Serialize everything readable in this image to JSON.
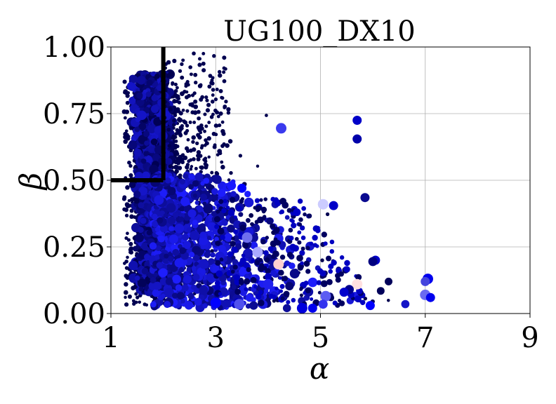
{
  "chart_data": {
    "type": "scatter",
    "title": "UG100_DX10",
    "xlabel": "α",
    "ylabel": "β",
    "xlim": [
      1,
      9
    ],
    "ylim": [
      0,
      1
    ],
    "xticks": [
      1,
      3,
      5,
      7,
      9
    ],
    "yticks": [
      0.0,
      0.25,
      0.5,
      0.75,
      1.0
    ],
    "xtick_labels": [
      "1",
      "3",
      "5",
      "7",
      "9"
    ],
    "ytick_labels": [
      "0.00",
      "0.25",
      "0.50",
      "0.75",
      "1.00"
    ],
    "grid": true,
    "threshold_lines": [
      {
        "from": [
          2.0,
          1.0
        ],
        "to": [
          2.0,
          0.5
        ]
      },
      {
        "from": [
          2.0,
          0.5
        ],
        "to": [
          1.0,
          0.5
        ]
      }
    ],
    "color_range": [
      "#00004a",
      "#0000ff",
      "#ffe0e0"
    ],
    "cluster": {
      "count": 4200,
      "alpha_range": [
        1.2,
        3.2
      ],
      "beta_range": [
        0.02,
        0.92
      ],
      "dense_core": {
        "alpha": [
          1.4,
          2.2
        ],
        "beta": [
          0.1,
          0.9
        ]
      }
    },
    "notable_points": [
      {
        "x": 4.25,
        "y": 0.695,
        "size": 6,
        "color": "#3a3aee"
      },
      {
        "x": 5.7,
        "y": 0.725,
        "size": 5,
        "color": "#0000c8"
      },
      {
        "x": 5.7,
        "y": 0.655,
        "size": 5,
        "color": "#0000aa"
      },
      {
        "x": 5.85,
        "y": 0.435,
        "size": 5,
        "color": "#0a0a90"
      },
      {
        "x": 5.05,
        "y": 0.41,
        "size": 6,
        "color": "#ccccff"
      },
      {
        "x": 5.25,
        "y": 0.405,
        "size": 5,
        "color": "#0000c8"
      },
      {
        "x": 4.55,
        "y": 0.38,
        "size": 4,
        "color": "#0000c8"
      },
      {
        "x": 4.2,
        "y": 0.185,
        "size": 6,
        "color": "#ffd0d0"
      },
      {
        "x": 5.7,
        "y": 0.11,
        "size": 6,
        "color": "#ffe0e0"
      },
      {
        "x": 6.05,
        "y": 0.2,
        "size": 5,
        "color": "#0000c8"
      },
      {
        "x": 6.0,
        "y": 0.195,
        "size": 5,
        "color": "#000080"
      },
      {
        "x": 5.1,
        "y": 0.065,
        "size": 6,
        "color": "#5c5cf2"
      },
      {
        "x": 5.05,
        "y": 0.035,
        "size": 5,
        "color": "#3333ee"
      },
      {
        "x": 5.95,
        "y": 0.03,
        "size": 5,
        "color": "#0000ff"
      },
      {
        "x": 7.05,
        "y": 0.13,
        "size": 6,
        "color": "#0000ee"
      },
      {
        "x": 7.0,
        "y": 0.12,
        "size": 5,
        "color": "#4444dd"
      },
      {
        "x": 7.0,
        "y": 0.07,
        "size": 6,
        "color": "#6a6af0"
      },
      {
        "x": 7.1,
        "y": 0.06,
        "size": 5,
        "color": "#0000ee"
      },
      {
        "x": 6.3,
        "y": 0.12,
        "size": 4,
        "color": "#00005a"
      },
      {
        "x": 6.15,
        "y": 0.085,
        "size": 4,
        "color": "#00005a"
      },
      {
        "x": 5.55,
        "y": 0.09,
        "size": 5,
        "color": "#00008c"
      },
      {
        "x": 5.45,
        "y": 0.08,
        "size": 5,
        "color": "#0000cc"
      },
      {
        "x": 4.85,
        "y": 0.02,
        "size": 5,
        "color": "#0000ee"
      },
      {
        "x": 4.65,
        "y": 0.02,
        "size": 6,
        "color": "#0000dd"
      },
      {
        "x": 3.8,
        "y": 0.23,
        "size": 6,
        "color": "#aaaaff"
      },
      {
        "x": 3.6,
        "y": 0.285,
        "size": 6,
        "color": "#7070ee"
      },
      {
        "x": 3.0,
        "y": 0.04,
        "size": 6,
        "color": "#0000ff"
      },
      {
        "x": 2.3,
        "y": 0.19,
        "size": 5,
        "color": "#1a1aee"
      },
      {
        "x": 3.45,
        "y": 0.035,
        "size": 6,
        "color": "#5050ee"
      },
      {
        "x": 4.0,
        "y": 0.11,
        "size": 6,
        "color": "#2020ee"
      },
      {
        "x": 3.3,
        "y": 0.48,
        "size": 5,
        "color": "#1a1aff"
      },
      {
        "x": 3.5,
        "y": 0.47,
        "size": 5,
        "color": "#0000ff"
      }
    ]
  }
}
